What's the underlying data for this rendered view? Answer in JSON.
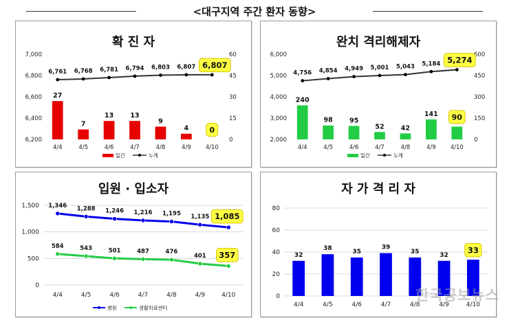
{
  "page": {
    "title": "<대구지역 주간 환자 동향>",
    "watermark": "한국공보뉴스"
  },
  "colors": {
    "red": "#e60000",
    "green": "#22cc44",
    "blue": "#0000ee",
    "dark": "#333333",
    "highlight": "#ffff44"
  },
  "chart_data": [
    {
      "id": "confirmed",
      "type": "bar",
      "title": "확 진 자",
      "categories": [
        "4/4",
        "4/5",
        "4/6",
        "4/7",
        "4/8",
        "4/9",
        "4/10"
      ],
      "bar_series": {
        "name": "일간",
        "values": [
          27,
          7,
          13,
          13,
          9,
          4,
          0
        ],
        "color": "#e60000",
        "ylim": [
          0,
          60
        ],
        "ticks": [
          0,
          15,
          30,
          45,
          60
        ]
      },
      "line_series": {
        "name": "누계",
        "values": [
          6761,
          6768,
          6781,
          6794,
          6803,
          6807,
          6807
        ],
        "labels": [
          "6,761",
          "6,768",
          "6,781",
          "6,794",
          "6,803",
          "6,807",
          "6,807"
        ],
        "ylim": [
          6200,
          7000
        ],
        "ticks": [
          "6,200",
          "6,400",
          "6,600",
          "6,800",
          "7,000"
        ]
      },
      "highlight": {
        "bar": "0",
        "line": "6,807"
      },
      "legend": [
        "일간",
        "누계"
      ]
    },
    {
      "id": "recovered",
      "type": "bar",
      "title": "완치 격리해제자",
      "categories": [
        "4/4",
        "4/5",
        "4/6",
        "4/7",
        "4/8",
        "4/9",
        "4/10"
      ],
      "bar_series": {
        "name": "일간",
        "values": [
          240,
          98,
          95,
          52,
          42,
          141,
          90
        ],
        "color": "#22cc44",
        "ylim": [
          0,
          600
        ],
        "ticks": [
          0,
          150,
          300,
          450,
          600
        ]
      },
      "line_series": {
        "name": "누계",
        "values": [
          4756,
          4854,
          4949,
          5001,
          5043,
          5184,
          5274
        ],
        "labels": [
          "4,756",
          "4,854",
          "4,949",
          "5,001",
          "5,043",
          "5,184",
          "5,274"
        ],
        "ylim": [
          2000,
          6000
        ],
        "ticks": [
          "2,000",
          "3,000",
          "4,000",
          "5,000",
          "6,000"
        ]
      },
      "highlight": {
        "bar": "90",
        "line": "5,274"
      },
      "legend": [
        "일간",
        "누계"
      ]
    },
    {
      "id": "hospitalized",
      "type": "line",
      "title": "입원 · 입소자",
      "categories": [
        "4/4",
        "4/5",
        "4/6",
        "4/7",
        "4/8",
        "4/9",
        "4/10"
      ],
      "ylim": [
        0,
        1500
      ],
      "ticks": [
        "0",
        "500",
        "1,000",
        "1,500"
      ],
      "series": [
        {
          "name": "병원",
          "values": [
            1346,
            1288,
            1246,
            1216,
            1195,
            1135,
            1085
          ],
          "labels": [
            "1,346",
            "1,288",
            "1,246",
            "1,216",
            "1,195",
            "1,135",
            "1,085"
          ],
          "color": "#0000ee"
        },
        {
          "name": "생활치료센터",
          "values": [
            584,
            543,
            501,
            487,
            476,
            401,
            357
          ],
          "labels": [
            "584",
            "543",
            "501",
            "487",
            "476",
            "401",
            "357"
          ],
          "color": "#22cc44"
        }
      ],
      "highlight": [
        "1,085",
        "357"
      ],
      "legend": [
        "병원",
        "생활치료센터"
      ]
    },
    {
      "id": "selfquarantine",
      "type": "bar",
      "title": "자 가 격 리 자",
      "categories": [
        "4/4",
        "4/5",
        "4/6",
        "4/7",
        "4/8",
        "4/9",
        "4/10"
      ],
      "ylim": [
        0,
        80
      ],
      "ticks": [
        "0",
        "20",
        "40",
        "60",
        "80"
      ],
      "bar_series": {
        "values": [
          32,
          38,
          35,
          39,
          35,
          32,
          33
        ],
        "color": "#0000ee"
      },
      "highlight": "33"
    }
  ]
}
